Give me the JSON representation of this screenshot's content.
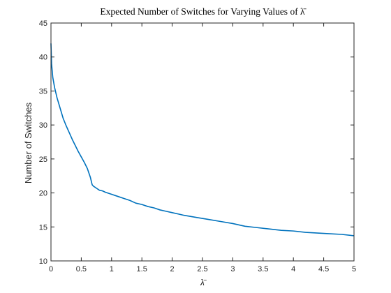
{
  "chart_data": {
    "type": "line",
    "title": "Expected Number of Switches for Varying Values of λ̄",
    "xlabel": "λ̄",
    "ylabel": "Number of Switches",
    "xlim": [
      0,
      5
    ],
    "ylim": [
      10,
      45
    ],
    "grid": false,
    "x_ticks": [
      "0",
      "0.5",
      "1",
      "1.5",
      "2",
      "2.5",
      "3",
      "3.5",
      "4",
      "4.5",
      "5"
    ],
    "y_ticks": [
      "10",
      "15",
      "20",
      "25",
      "30",
      "35",
      "40",
      "45"
    ],
    "series": [
      {
        "color": "#0072BD",
        "x": [
          0.0,
          0.01,
          0.03,
          0.06,
          0.1,
          0.15,
          0.2,
          0.25,
          0.3,
          0.35,
          0.4,
          0.45,
          0.5,
          0.55,
          0.6,
          0.65,
          0.68,
          0.7,
          0.75,
          0.8,
          0.85,
          0.9,
          1.0,
          1.1,
          1.2,
          1.3,
          1.4,
          1.5,
          1.6,
          1.7,
          1.8,
          1.9,
          2.0,
          2.2,
          2.4,
          2.6,
          2.8,
          3.0,
          3.2,
          3.4,
          3.6,
          3.8,
          4.0,
          4.2,
          4.4,
          4.6,
          4.8,
          5.0
        ],
        "y": [
          42.0,
          39.0,
          37.0,
          35.5,
          34.0,
          32.5,
          31.0,
          29.9,
          28.9,
          27.9,
          27.0,
          26.1,
          25.3,
          24.5,
          23.6,
          22.3,
          21.2,
          21.0,
          20.7,
          20.4,
          20.3,
          20.1,
          19.8,
          19.5,
          19.2,
          18.9,
          18.5,
          18.3,
          18.0,
          17.8,
          17.5,
          17.3,
          17.1,
          16.7,
          16.4,
          16.1,
          15.8,
          15.5,
          15.1,
          14.9,
          14.7,
          14.5,
          14.4,
          14.2,
          14.1,
          14.0,
          13.9,
          13.7
        ]
      }
    ]
  }
}
